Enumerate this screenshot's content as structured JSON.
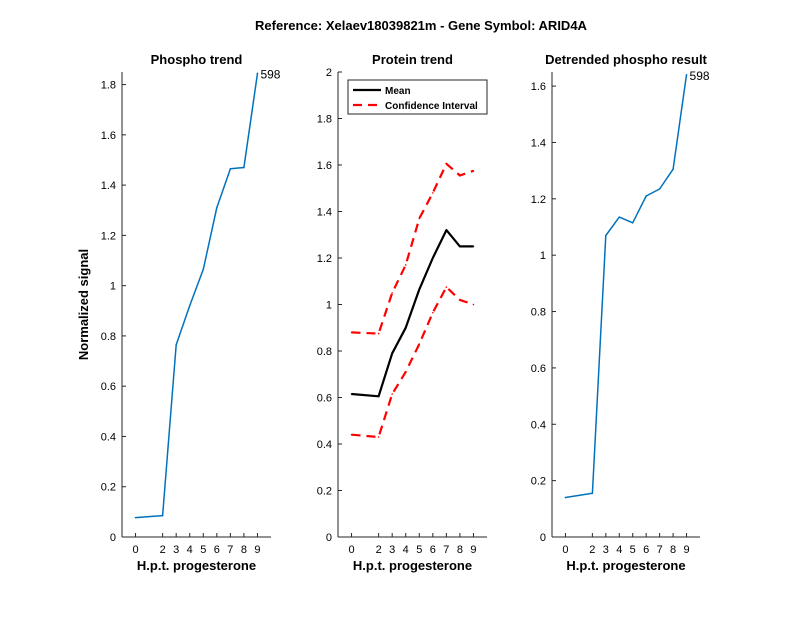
{
  "figure": {
    "title": "Reference:  Xelaev18039821m - Gene Symbol:  ARID4A"
  },
  "chart_data": [
    {
      "type": "line",
      "title": "Phospho trend",
      "xlabel": "H.p.t. progesterone",
      "ylabel": "Normalized signal",
      "x": [
        0,
        2,
        3,
        4,
        5,
        6,
        7,
        8,
        9
      ],
      "xticks": [
        "0",
        "2",
        "3",
        "4",
        "5",
        "6",
        "7",
        "8",
        "9"
      ],
      "ylim": [
        0,
        1.85
      ],
      "yticks": [
        "0",
        "0.2",
        "0.4",
        "0.6",
        "0.8",
        "1",
        "1.2",
        "1.4",
        "1.6",
        "1.8"
      ],
      "series": [
        {
          "values": [
            0.077,
            0.085,
            0.765,
            0.92,
            1.065,
            1.31,
            1.465,
            1.47,
            1.845
          ],
          "color": "#0072BD",
          "style": "solid"
        }
      ],
      "annotations": [
        {
          "text": "598",
          "x": 9,
          "y": 1.845
        }
      ]
    },
    {
      "type": "line",
      "title": "Protein trend",
      "xlabel": "H.p.t. progesterone",
      "x": [
        0,
        2,
        3,
        4,
        5,
        6,
        7,
        8,
        9
      ],
      "xticks": [
        "0",
        "2",
        "3",
        "4",
        "5",
        "6",
        "7",
        "8",
        "9"
      ],
      "ylim": [
        0,
        2
      ],
      "yticks": [
        "0",
        "0.2",
        "0.4",
        "0.6",
        "0.8",
        "1",
        "1.2",
        "1.4",
        "1.6",
        "1.8",
        "2"
      ],
      "series": [
        {
          "name": "Mean",
          "values": [
            0.615,
            0.605,
            0.79,
            0.9,
            1.065,
            1.2,
            1.32,
            1.25,
            1.25
          ],
          "color": "#000000",
          "style": "solid"
        },
        {
          "name": "Confidence Interval",
          "values": [
            0.88,
            0.875,
            1.05,
            1.17,
            1.37,
            1.48,
            1.605,
            1.555,
            1.575
          ],
          "color": "#FF0000",
          "style": "dashed"
        },
        {
          "values": [
            0.44,
            0.43,
            0.615,
            0.71,
            0.83,
            0.965,
            1.075,
            1.02,
            1.0
          ],
          "color": "#FF0000",
          "style": "dashed"
        }
      ],
      "legend": {
        "position": "top-left"
      }
    },
    {
      "type": "line",
      "title": "Detrended phospho result",
      "xlabel": "H.p.t. progesterone",
      "x": [
        0,
        2,
        3,
        4,
        5,
        6,
        7,
        8,
        9
      ],
      "xticks": [
        "0",
        "2",
        "3",
        "4",
        "5",
        "6",
        "7",
        "8",
        "9"
      ],
      "ylim": [
        0,
        1.65
      ],
      "yticks": [
        "0",
        "0.2",
        "0.4",
        "0.6",
        "0.8",
        "1",
        "1.2",
        "1.4",
        "1.6"
      ],
      "series": [
        {
          "values": [
            0.14,
            0.155,
            1.07,
            1.135,
            1.115,
            1.21,
            1.235,
            1.305,
            1.64
          ],
          "color": "#0072BD",
          "style": "solid"
        }
      ],
      "annotations": [
        {
          "text": "598",
          "x": 9,
          "y": 1.64
        }
      ]
    }
  ]
}
